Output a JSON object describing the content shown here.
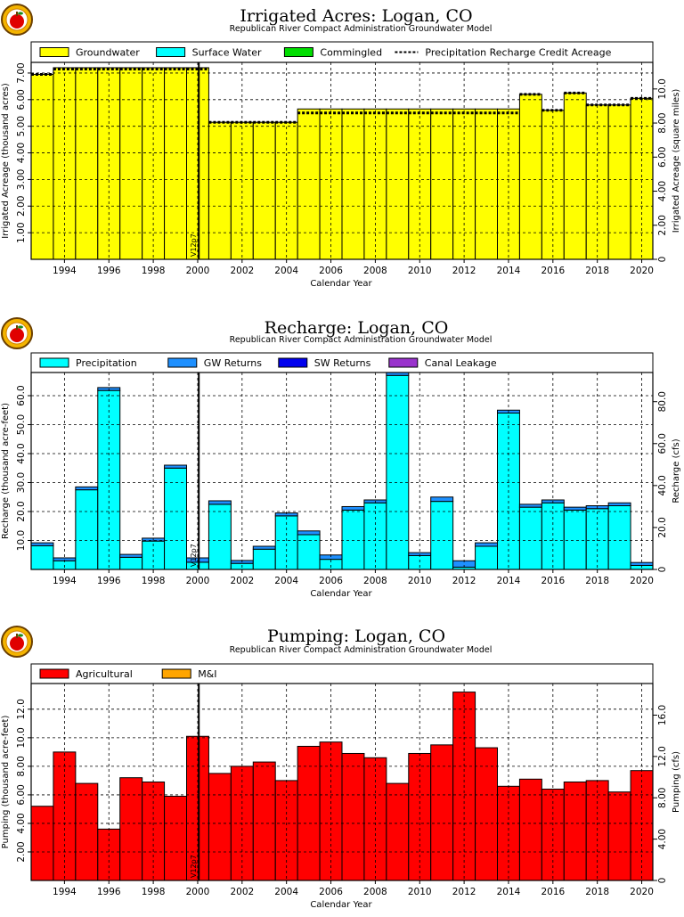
{
  "colors": {
    "groundwater": "#ffff00",
    "surface_water": "#00ffff",
    "commingled": "#00dd00",
    "precipitation": "#00ffff",
    "gw_returns": "#1e90ff",
    "sw_returns": "#0000ee",
    "canal_leakage": "#9932cc",
    "agricultural": "#ff0000",
    "mi": "#ffa500",
    "logo": "apple-logo"
  },
  "chart_data": [
    {
      "type": "bar",
      "title": "Irrigated Acres: Logan, CO",
      "subtitle": "Republican River Compact Administration Groundwater Model",
      "xlabel": "Calendar Year",
      "ylabel": "Irrigated Acreage (thousand acres)",
      "y2label": "Irrigated Acreage (square miles)",
      "xlim": [
        1993,
        2021
      ],
      "ylim": [
        0,
        7.4
      ],
      "y2lim": [
        0,
        11.56
      ],
      "x_ticks": [
        "1994",
        "1996",
        "1998",
        "2000",
        "2002",
        "2004",
        "2006",
        "2008",
        "2010",
        "2012",
        "2014",
        "2016",
        "2018",
        "2020"
      ],
      "y_ticks": [
        "1.00",
        "2.00",
        "3.00",
        "4.00",
        "5.00",
        "6.00",
        "7.00"
      ],
      "y2_ticks": [
        "0",
        "2.00",
        "4.00",
        "6.00",
        "8.00",
        "10.0"
      ],
      "grid": true,
      "legend": "top",
      "categories": [
        "1993",
        "1994",
        "1995",
        "1996",
        "1997",
        "1998",
        "1999",
        "2000",
        "2001",
        "2002",
        "2003",
        "2004",
        "2005",
        "2006",
        "2007",
        "2008",
        "2009",
        "2010",
        "2011",
        "2012",
        "2013",
        "2014",
        "2015",
        "2016",
        "2017",
        "2018",
        "2019",
        "2020"
      ],
      "series": [
        {
          "name": "Groundwater",
          "values": [
            6.95,
            7.2,
            7.2,
            7.2,
            7.2,
            7.2,
            7.2,
            7.2,
            5.15,
            5.15,
            5.15,
            5.15,
            5.65,
            5.65,
            5.65,
            5.65,
            5.65,
            5.65,
            5.65,
            5.65,
            5.65,
            5.65,
            6.2,
            5.6,
            6.25,
            5.8,
            5.8,
            6.05
          ]
        },
        {
          "name": "Surface Water",
          "values": [
            0,
            0,
            0,
            0,
            0,
            0,
            0,
            0,
            0,
            0,
            0,
            0,
            0,
            0,
            0,
            0,
            0,
            0,
            0,
            0,
            0,
            0,
            0,
            0,
            0,
            0,
            0,
            0
          ]
        },
        {
          "name": "Commingled",
          "values": [
            0,
            0,
            0,
            0,
            0,
            0,
            0,
            0,
            0,
            0,
            0,
            0,
            0,
            0,
            0,
            0,
            0,
            0,
            0,
            0,
            0,
            0,
            0,
            0,
            0,
            0,
            0,
            0
          ]
        },
        {
          "name": "Precipitation Recharge Credit Acreage",
          "values": [
            6.95,
            7.15,
            7.15,
            7.15,
            7.15,
            7.15,
            7.15,
            7.15,
            5.15,
            5.15,
            5.15,
            5.15,
            5.5,
            5.5,
            5.5,
            5.5,
            5.5,
            5.5,
            5.5,
            5.5,
            5.5,
            5.5,
            6.2,
            5.6,
            6.25,
            5.8,
            5.8,
            6.05
          ]
        }
      ],
      "marker": {
        "x": 2000.55,
        "label": "V12p7"
      }
    },
    {
      "type": "bar",
      "title": "Recharge: Logan, CO",
      "subtitle": "Republican River Compact Administration Groundwater Model",
      "xlabel": "Calendar Year",
      "ylabel": "Recharge (thousand acre-feet)",
      "y2label": "Recharge (cfs)",
      "xlim": [
        1993,
        2021
      ],
      "ylim": [
        0,
        68
      ],
      "y2lim": [
        0,
        93.9
      ],
      "x_ticks": [
        "1994",
        "1996",
        "1998",
        "2000",
        "2002",
        "2004",
        "2006",
        "2008",
        "2010",
        "2012",
        "2014",
        "2016",
        "2018",
        "2020"
      ],
      "y_ticks": [
        "10.0",
        "20.0",
        "30.0",
        "40.0",
        "50.0",
        "60.0"
      ],
      "y2_ticks": [
        "0",
        "20.0",
        "40.0",
        "60.0",
        "80.0"
      ],
      "grid": true,
      "legend": "top",
      "categories": [
        "1993",
        "1994",
        "1995",
        "1996",
        "1997",
        "1998",
        "1999",
        "2000",
        "2001",
        "2002",
        "2003",
        "2004",
        "2005",
        "2006",
        "2007",
        "2008",
        "2009",
        "2010",
        "2011",
        "2012",
        "2013",
        "2014",
        "2015",
        "2016",
        "2017",
        "2018",
        "2019",
        "2020"
      ],
      "series": [
        {
          "name": "Precipitation",
          "values": [
            8.2,
            3.0,
            27.5,
            61.8,
            4.2,
            9.8,
            35.0,
            2.5,
            22.5,
            2.1,
            7.0,
            18.5,
            12.0,
            3.5,
            20.5,
            23.0,
            67.0,
            4.8,
            23.5,
            0.8,
            8.0,
            54.0,
            21.5,
            23.0,
            20.5,
            21.0,
            22.0,
            1.4
          ]
        },
        {
          "name": "GW Returns",
          "values": [
            1.0,
            1.0,
            1.0,
            1.0,
            1.0,
            1.0,
            1.0,
            1.5,
            1.2,
            1.0,
            1.0,
            1.0,
            1.3,
            1.5,
            1.2,
            1.0,
            1.0,
            1.0,
            1.5,
            2.2,
            1.2,
            1.0,
            1.0,
            1.0,
            1.0,
            1.0,
            1.0,
            1.0
          ]
        },
        {
          "name": "SW Returns",
          "values": [
            0,
            0,
            0,
            0,
            0,
            0,
            0,
            0,
            0,
            0,
            0,
            0,
            0,
            0,
            0,
            0,
            0,
            0,
            0,
            0,
            0,
            0,
            0,
            0,
            0,
            0,
            0,
            0
          ]
        },
        {
          "name": "Canal Leakage",
          "values": [
            0,
            0,
            0,
            0,
            0,
            0,
            0,
            0,
            0,
            0,
            0,
            0,
            0,
            0,
            0,
            0,
            0,
            0,
            0,
            0,
            0,
            0,
            0,
            0,
            0,
            0,
            0,
            0
          ]
        }
      ],
      "marker": {
        "x": 2000.55,
        "label": "V12p7"
      }
    },
    {
      "type": "bar",
      "title": "Pumping: Logan, CO",
      "subtitle": "Republican River Compact Administration Groundwater Model",
      "xlabel": "Calendar Year",
      "ylabel": "Pumping (thousand acre-feet)",
      "y2label": "Pumping (cfs)",
      "xlim": [
        1993,
        2021
      ],
      "ylim": [
        0,
        13.8
      ],
      "y2lim": [
        0,
        19.06
      ],
      "x_ticks": [
        "1994",
        "1996",
        "1998",
        "2000",
        "2002",
        "2004",
        "2006",
        "2008",
        "2010",
        "2012",
        "2014",
        "2016",
        "2018",
        "2020"
      ],
      "y_ticks": [
        "2.00",
        "4.00",
        "6.00",
        "8.00",
        "10.0",
        "12.0"
      ],
      "y2_ticks": [
        "0",
        "4.00",
        "8.00",
        "12.0",
        "16.0"
      ],
      "grid": true,
      "legend": "top",
      "categories": [
        "1993",
        "1994",
        "1995",
        "1996",
        "1997",
        "1998",
        "1999",
        "2000",
        "2001",
        "2002",
        "2003",
        "2004",
        "2005",
        "2006",
        "2007",
        "2008",
        "2009",
        "2010",
        "2011",
        "2012",
        "2013",
        "2014",
        "2015",
        "2016",
        "2017",
        "2018",
        "2019",
        "2020"
      ],
      "series": [
        {
          "name": "Agricultural",
          "values": [
            5.2,
            9.0,
            6.8,
            3.6,
            7.2,
            6.9,
            5.9,
            10.1,
            7.5,
            8.0,
            8.3,
            7.0,
            9.4,
            9.7,
            8.9,
            8.6,
            6.8,
            8.9,
            9.5,
            13.2,
            9.3,
            6.6,
            7.1,
            6.4,
            6.9,
            7.0,
            6.2,
            7.7
          ]
        },
        {
          "name": "M&I",
          "values": [
            0,
            0,
            0,
            0,
            0,
            0,
            0,
            0,
            0,
            0,
            0,
            0,
            0,
            0,
            0,
            0,
            0,
            0,
            0,
            0,
            0,
            0,
            0,
            0,
            0,
            0,
            0,
            0
          ]
        }
      ],
      "marker": {
        "x": 2000.55,
        "label": "V12p7"
      }
    }
  ]
}
